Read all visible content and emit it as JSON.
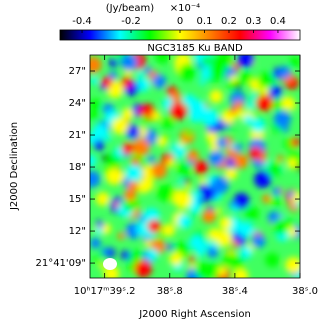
{
  "chart_data": {
    "type": "image",
    "title": "NGC3185 Ku BAND",
    "xlabel": "J2000 Right Ascension",
    "ylabel": "J2000 Declination",
    "colorbar_label": "(Jy/beam)",
    "colorbar_scale": "×10⁻⁴",
    "colormap": [
      "#000000",
      "#0000ff",
      "#00ffff",
      "#00ff00",
      "#ffff00",
      "#ff8000",
      "#ff0000",
      "#ff00ff",
      "#ffffff"
    ],
    "clim": [
      -0.49,
      0.49
    ],
    "cticks": [
      -0.4,
      -0.2,
      0,
      0.1,
      0.2,
      0.3,
      0.4
    ],
    "xlim": [
      39.29,
      38.0
    ],
    "xticks": [
      {
        "value": 39.2,
        "label": "10ʰ17ᵐ39ˢ.2"
      },
      {
        "value": 38.8,
        "label": "38ˢ.8"
      },
      {
        "value": 38.4,
        "label": "38ˢ.4"
      },
      {
        "value": 38.0,
        "label": "38ˢ.0"
      }
    ],
    "ylim": [
      7.6,
      28.5
    ],
    "yticks": [
      {
        "value": 9,
        "label": "21°41'09\""
      },
      {
        "value": 12,
        "label": "12\""
      },
      {
        "value": 15,
        "label": "15\""
      },
      {
        "value": 18,
        "label": "18\""
      },
      {
        "value": 21,
        "label": "21\""
      },
      {
        "value": 24,
        "label": "24\""
      },
      {
        "value": 27,
        "label": "27\""
      }
    ]
  }
}
